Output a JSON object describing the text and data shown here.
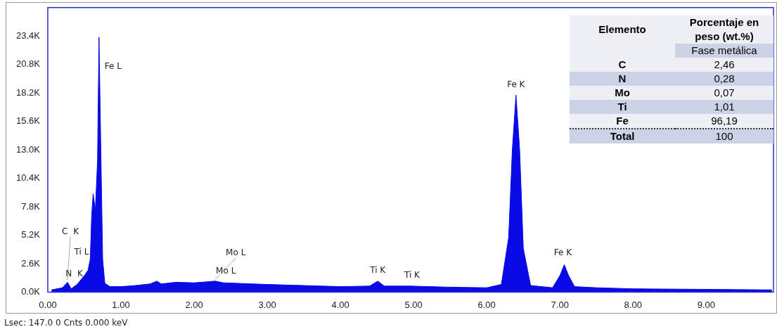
{
  "chart_data": [
    {
      "type": "area",
      "x": [
        0.05,
        0.2,
        0.27,
        0.32,
        0.4,
        0.5,
        0.55,
        0.58,
        0.6,
        0.62,
        0.65,
        0.68,
        0.7,
        0.72,
        0.75,
        0.78,
        0.85,
        1.0,
        1.2,
        1.4,
        1.49,
        1.55,
        1.75,
        2.0,
        2.29,
        2.4,
        3.0,
        3.5,
        4.0,
        4.4,
        4.51,
        4.6,
        4.95,
        5.5,
        6.0,
        6.2,
        6.3,
        6.35,
        6.4,
        6.45,
        6.5,
        6.6,
        6.9,
        7.0,
        7.06,
        7.12,
        7.2,
        7.5,
        8.0,
        9.0,
        9.9
      ],
      "series": [
        {
          "color": "#0a0ae6",
          "values": [
            200,
            400,
            900,
            300,
            700,
            1500,
            2000,
            3000,
            7000,
            9000,
            7500,
            12000,
            23300,
            15000,
            3000,
            800,
            500,
            500,
            600,
            750,
            1000,
            750,
            900,
            850,
            1000,
            850,
            700,
            600,
            500,
            550,
            1000,
            550,
            550,
            450,
            400,
            700,
            5000,
            13000,
            18000,
            13000,
            4000,
            600,
            400,
            1500,
            2500,
            1500,
            500,
            400,
            300,
            250,
            200
          ]
        }
      ],
      "xlim": [
        0,
        9.92
      ],
      "xticks": [
        {
          "value": 0,
          "label": "0.00"
        },
        {
          "value": 1,
          "label": "1.00"
        },
        {
          "value": 2,
          "label": "2.00"
        },
        {
          "value": 3,
          "label": "3.00"
        },
        {
          "value": 4,
          "label": "4.00"
        },
        {
          "value": 5,
          "label": "5.00"
        },
        {
          "value": 6,
          "label": "6.00"
        },
        {
          "value": 7,
          "label": "7.00"
        },
        {
          "value": 8,
          "label": "8.00"
        },
        {
          "value": 9,
          "label": "9.00"
        }
      ],
      "ylim": [
        0,
        26000
      ],
      "yticks": [
        {
          "value": 0,
          "label": "0.0K"
        },
        {
          "value": 2600,
          "label": "2.6K"
        },
        {
          "value": 5200,
          "label": "5.2K"
        },
        {
          "value": 7800,
          "label": "7.8K"
        },
        {
          "value": 10400,
          "label": "10.4K"
        },
        {
          "value": 13000,
          "label": "13.0K"
        },
        {
          "value": 15600,
          "label": "15.6K"
        },
        {
          "value": 18200,
          "label": "18.2K"
        },
        {
          "value": 20800,
          "label": "20.8K"
        },
        {
          "value": 23400,
          "label": "23.4K"
        }
      ],
      "annotations": [
        {
          "text": "Fe L",
          "x": 0.7,
          "y": 23300
        },
        {
          "text": "Fe K",
          "x": 6.4,
          "y": 18000
        },
        {
          "text": "C  K",
          "x": 0.27,
          "y": 900
        },
        {
          "text": "Ti L",
          "x": 0.5,
          "y": 1500
        },
        {
          "text": "N  K",
          "x": 0.4,
          "y": 700
        },
        {
          "text": "Mo L",
          "x": 2.29,
          "y": 1000
        },
        {
          "text": "Mo L",
          "x": 2.29,
          "y": 1000
        },
        {
          "text": "Ti K",
          "x": 4.51,
          "y": 1000
        },
        {
          "text": "Ti K",
          "x": 4.95,
          "y": 550
        },
        {
          "text": "Fe K",
          "x": 7.06,
          "y": 2500
        },
        "Elemento",
        "Porcentaje en peso (wt.%)",
        "Fase metálica",
        "C",
        "2,46",
        "N",
        "0,28",
        "Mo",
        "0,07",
        "Ti",
        "1,01",
        "Fe",
        "96,19",
        "Total",
        "100",
        "Lsec: 147.0 0 Cnts  0.000 keV"
      ]
    }
  ]
}
